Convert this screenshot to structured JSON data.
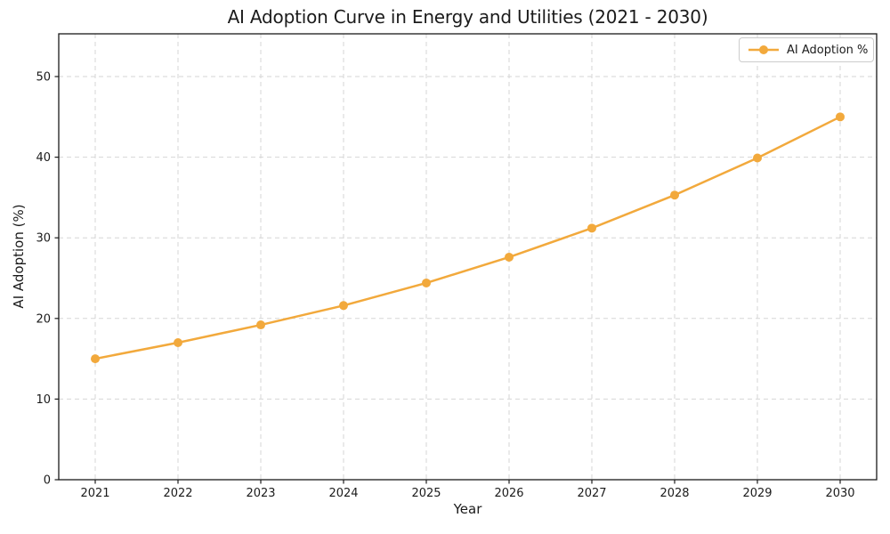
{
  "chart_data": {
    "type": "line",
    "title": "AI Adoption Curve in Energy and Utilities (2021 - 2030)",
    "xlabel": "Year",
    "ylabel": "AI Adoption (%)",
    "categories": [
      "2021",
      "2022",
      "2023",
      "2024",
      "2025",
      "2026",
      "2027",
      "2028",
      "2029",
      "2030"
    ],
    "series": [
      {
        "name": "AI Adoption %",
        "values": [
          15.0,
          17.0,
          19.2,
          21.6,
          24.4,
          27.6,
          31.2,
          35.3,
          39.9,
          45.0
        ],
        "color": "#f2a93c",
        "marker": "circle"
      }
    ],
    "ylim": [
      0,
      55.3
    ],
    "yticks": [
      0,
      10,
      20,
      30,
      40,
      50
    ],
    "grid": "dashed both x and y",
    "legend_position": "upper right",
    "colors": {
      "line": "#f2a93c",
      "grid": "#d6d6d6",
      "spine": "#1a1a1a",
      "text": "#1b1b1b",
      "background": "#ffffff"
    }
  }
}
